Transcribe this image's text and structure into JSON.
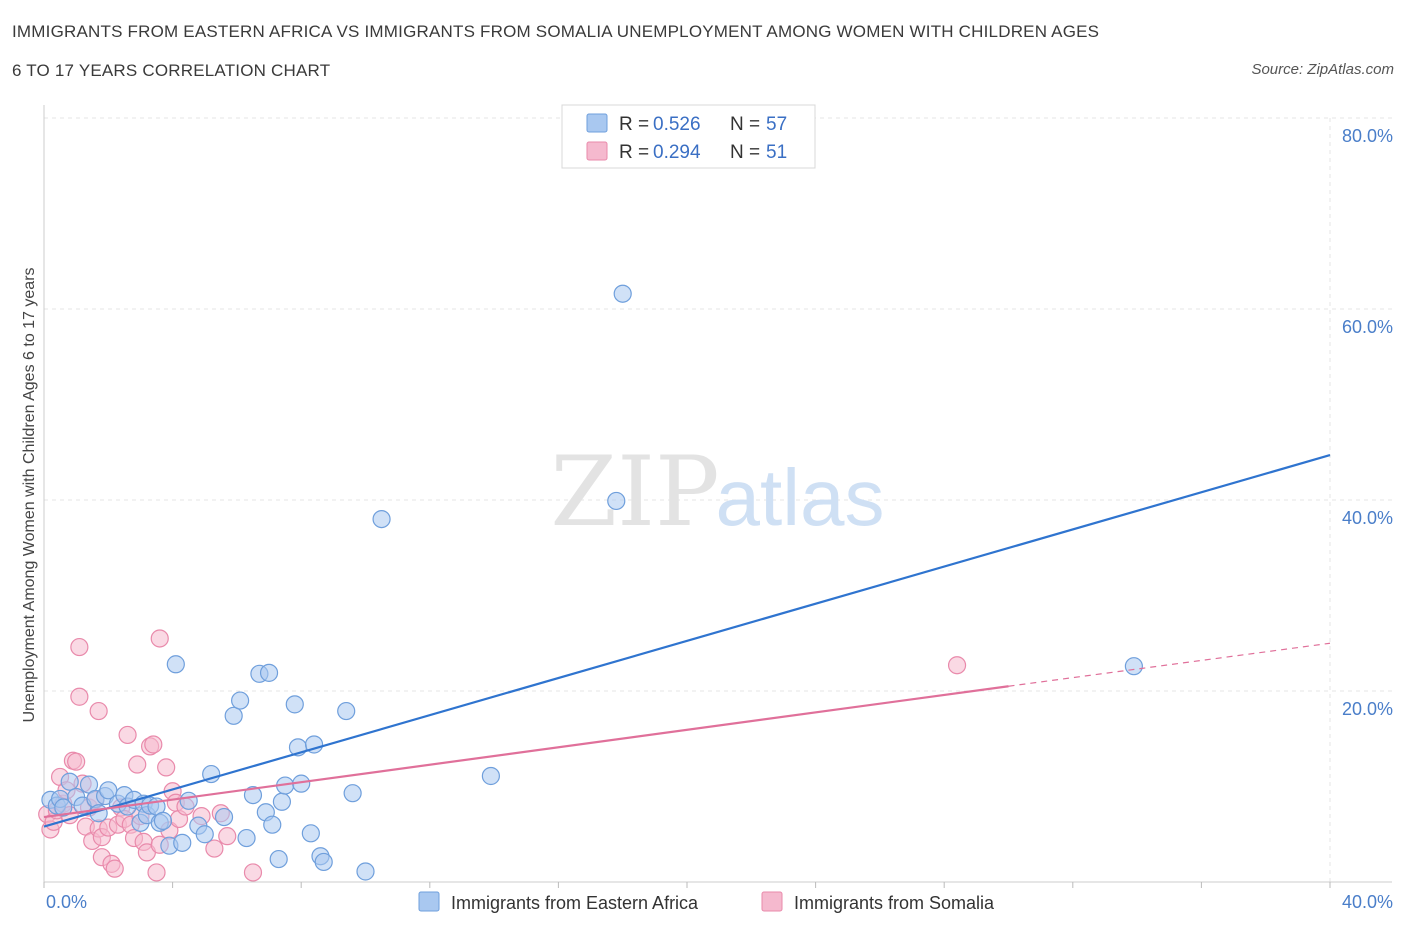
{
  "header": {
    "title_line1": "IMMIGRANTS FROM EASTERN AFRICA VS IMMIGRANTS FROM SOMALIA UNEMPLOYMENT AMONG WOMEN WITH CHILDREN AGES",
    "title_line2": "6 TO 17 YEARS CORRELATION CHART",
    "source": "Source: ZipAtlas.com"
  },
  "watermark": {
    "zip": "ZIP",
    "atlas": "atlas"
  },
  "legend": {
    "r_label": "R =",
    "n_label": "N =",
    "rows": [
      {
        "r": "0.526",
        "n": "57"
      },
      {
        "r": "0.294",
        "n": "51"
      }
    ]
  },
  "colors": {
    "blue_fill": "#a9c8f0",
    "blue_stroke": "#6f9fdc",
    "blue_line": "#2f74cf",
    "pink_fill": "#f5b9ce",
    "pink_stroke": "#e98aab",
    "pink_line": "#e0709a"
  },
  "chart_data": {
    "type": "scatter",
    "xlim": [
      0,
      40
    ],
    "ylim": [
      0,
      80
    ],
    "x_tick_labels": [
      "0.0%",
      "40.0%"
    ],
    "y_ticks": [
      20,
      40,
      60,
      80
    ],
    "y_tick_labels": [
      "20.0%",
      "40.0%",
      "60.0%",
      "80.0%"
    ],
    "ylabel": "Unemployment Among Women with Children Ages 6 to 17 years",
    "grid": true,
    "legend_position": "top-center",
    "series": [
      {
        "name": "Immigrants from Eastern Africa",
        "trend": {
          "x": [
            0.0,
            40.0
          ],
          "y": [
            5.8,
            44.7
          ]
        },
        "points": [
          [
            0.2,
            8.6
          ],
          [
            0.4,
            8.0
          ],
          [
            0.5,
            8.7
          ],
          [
            0.6,
            7.8
          ],
          [
            0.8,
            10.5
          ],
          [
            1.0,
            8.9
          ],
          [
            1.2,
            8.0
          ],
          [
            1.4,
            10.2
          ],
          [
            1.6,
            8.7
          ],
          [
            1.7,
            7.2
          ],
          [
            1.9,
            9.0
          ],
          [
            2.0,
            9.6
          ],
          [
            2.3,
            8.2
          ],
          [
            2.5,
            9.1
          ],
          [
            2.6,
            7.9
          ],
          [
            2.8,
            8.6
          ],
          [
            3.0,
            6.2
          ],
          [
            3.1,
            8.2
          ],
          [
            3.2,
            7.0
          ],
          [
            3.3,
            8.0
          ],
          [
            3.5,
            7.9
          ],
          [
            3.6,
            6.2
          ],
          [
            3.7,
            6.4
          ],
          [
            3.9,
            3.8
          ],
          [
            4.1,
            22.8
          ],
          [
            4.3,
            4.1
          ],
          [
            4.5,
            8.5
          ],
          [
            4.8,
            5.9
          ],
          [
            5.0,
            5.0
          ],
          [
            5.2,
            11.3
          ],
          [
            5.6,
            6.8
          ],
          [
            5.9,
            17.4
          ],
          [
            6.1,
            19.0
          ],
          [
            6.3,
            4.6
          ],
          [
            6.5,
            9.1
          ],
          [
            6.7,
            21.8
          ],
          [
            6.9,
            7.3
          ],
          [
            7.0,
            21.9
          ],
          [
            7.1,
            6.0
          ],
          [
            7.3,
            2.4
          ],
          [
            7.4,
            8.4
          ],
          [
            7.5,
            10.1
          ],
          [
            7.8,
            18.6
          ],
          [
            7.9,
            14.1
          ],
          [
            8.0,
            10.3
          ],
          [
            8.3,
            5.1
          ],
          [
            8.4,
            14.4
          ],
          [
            8.6,
            2.7
          ],
          [
            8.7,
            2.1
          ],
          [
            9.4,
            17.9
          ],
          [
            9.6,
            9.3
          ],
          [
            10.0,
            1.1
          ],
          [
            10.5,
            38.0
          ],
          [
            13.9,
            11.1
          ],
          [
            17.8,
            39.9
          ],
          [
            18.0,
            61.6
          ],
          [
            33.9,
            22.6
          ]
        ]
      },
      {
        "name": "Immigrants from Somalia",
        "trend": {
          "x": [
            0.0,
            30.0
          ],
          "y": [
            6.8,
            20.5
          ]
        },
        "trend_dashed": {
          "x": [
            30.0,
            40.0
          ],
          "y": [
            20.5,
            25.0
          ]
        },
        "points": [
          [
            0.1,
            7.1
          ],
          [
            0.2,
            5.5
          ],
          [
            0.3,
            6.3
          ],
          [
            0.4,
            7.5
          ],
          [
            0.5,
            11.0
          ],
          [
            0.6,
            8.2
          ],
          [
            0.7,
            9.6
          ],
          [
            0.8,
            7.0
          ],
          [
            0.9,
            12.7
          ],
          [
            1.0,
            12.6
          ],
          [
            1.1,
            19.4
          ],
          [
            1.1,
            24.6
          ],
          [
            1.2,
            10.3
          ],
          [
            1.3,
            5.8
          ],
          [
            1.4,
            7.8
          ],
          [
            1.5,
            4.3
          ],
          [
            1.6,
            8.6
          ],
          [
            1.7,
            5.6
          ],
          [
            1.7,
            17.9
          ],
          [
            1.8,
            4.7
          ],
          [
            1.8,
            2.6
          ],
          [
            2.0,
            5.7
          ],
          [
            2.1,
            1.9
          ],
          [
            2.2,
            1.4
          ],
          [
            2.3,
            6.0
          ],
          [
            2.4,
            7.8
          ],
          [
            2.5,
            6.6
          ],
          [
            2.6,
            15.4
          ],
          [
            2.7,
            6.0
          ],
          [
            2.8,
            4.6
          ],
          [
            2.9,
            12.3
          ],
          [
            3.0,
            6.9
          ],
          [
            3.1,
            4.2
          ],
          [
            3.2,
            3.1
          ],
          [
            3.3,
            14.2
          ],
          [
            3.4,
            14.4
          ],
          [
            3.5,
            1.0
          ],
          [
            3.6,
            3.9
          ],
          [
            3.6,
            25.5
          ],
          [
            3.8,
            12.0
          ],
          [
            3.9,
            5.4
          ],
          [
            4.0,
            9.5
          ],
          [
            4.1,
            8.3
          ],
          [
            4.2,
            6.6
          ],
          [
            4.4,
            7.9
          ],
          [
            4.9,
            6.9
          ],
          [
            5.3,
            3.5
          ],
          [
            5.5,
            7.2
          ],
          [
            5.7,
            4.8
          ],
          [
            6.5,
            1.0
          ],
          [
            28.4,
            22.7
          ]
        ]
      }
    ]
  },
  "bottom_legend": [
    {
      "label": "Immigrants from Eastern Africa"
    },
    {
      "label": "Immigrants from Somalia"
    }
  ]
}
